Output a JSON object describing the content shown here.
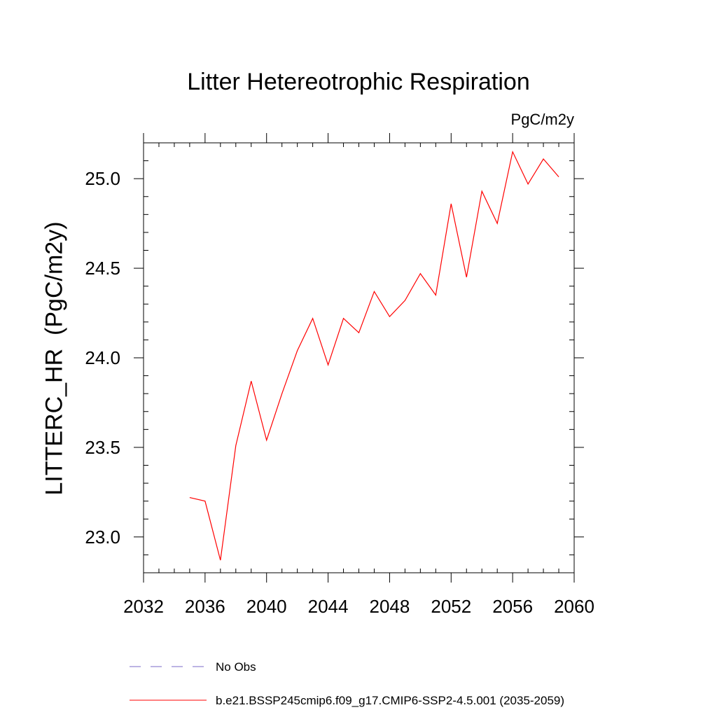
{
  "chart_data": {
    "type": "line",
    "title": "Litter Hetereotrophic Respiration",
    "units_label": "PgC/m2y",
    "ylabel": "LITTERC_HR  (PgC/m2y)",
    "xlim": [
      2032,
      2060
    ],
    "ylim": [
      22.8,
      25.2
    ],
    "x_ticks": [
      2032,
      2036,
      2040,
      2044,
      2048,
      2052,
      2056,
      2060
    ],
    "x_tick_labels": [
      "2032",
      "2036",
      "2040",
      "2044",
      "2048",
      "2052",
      "2056",
      "2060"
    ],
    "y_ticks": [
      23.0,
      23.5,
      24.0,
      24.5,
      25.0
    ],
    "y_tick_labels": [
      "23.0",
      "23.5",
      "24.0",
      "24.5",
      "25.0"
    ],
    "series": [
      {
        "name": "b.e21.BSSP245cmip6.f09_g17.CMIP6-SSP2-4.5.001 (2035-2059)",
        "color": "#ff0000",
        "style": "solid",
        "x": [
          2035,
          2036,
          2037,
          2038,
          2039,
          2040,
          2041,
          2042,
          2043,
          2044,
          2045,
          2046,
          2047,
          2048,
          2049,
          2050,
          2051,
          2052,
          2053,
          2054,
          2055,
          2056,
          2057,
          2058,
          2059
        ],
        "y": [
          23.22,
          23.2,
          22.87,
          23.51,
          23.87,
          23.54,
          23.8,
          24.04,
          24.22,
          23.96,
          24.22,
          24.14,
          24.37,
          24.23,
          24.32,
          24.47,
          24.35,
          24.86,
          24.45,
          24.93,
          24.75,
          25.15,
          24.97,
          25.11,
          25.01
        ]
      }
    ],
    "legend": [
      {
        "label": "No Obs",
        "color": "#7b68c8",
        "style": "dashed"
      },
      {
        "label": "b.e21.BSSP245cmip6.f09_g17.CMIP6-SSP2-4.5.001 (2035-2059)",
        "color": "#ff0000",
        "style": "solid"
      }
    ],
    "legend_position": "bottom",
    "grid": false
  }
}
